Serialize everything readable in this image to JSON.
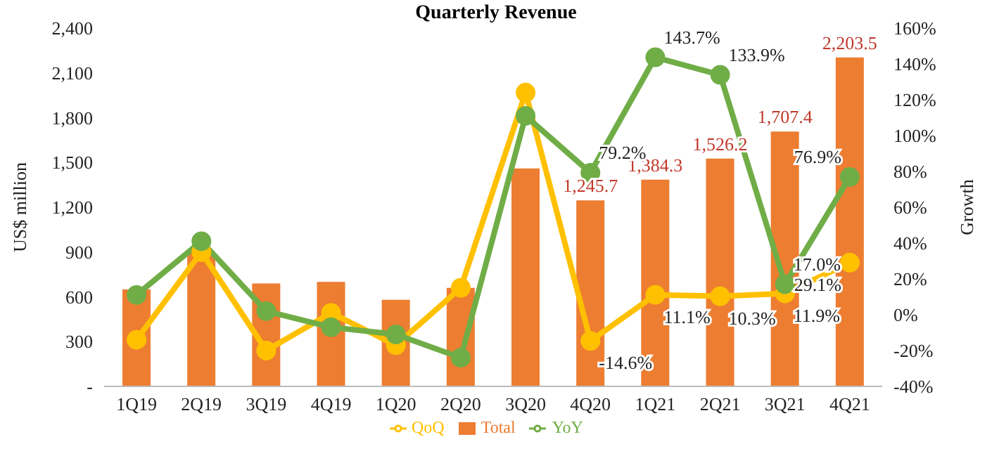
{
  "chart_data": {
    "type": "bar",
    "title": "Quarterly Revenue",
    "ylabel": "US$ million",
    "y2label": "Growth",
    "categories": [
      "1Q19",
      "2Q19",
      "3Q19",
      "4Q19",
      "1Q20",
      "2Q20",
      "3Q20",
      "4Q20",
      "1Q21",
      "2Q21",
      "3Q21",
      "4Q21"
    ],
    "series": [
      {
        "name": "Total",
        "color": "#ed7d31",
        "values": [
          650,
          900,
          690,
          700,
          580,
          660,
          1460,
          1245.7,
          1384.3,
          1526.2,
          1707.4,
          2203.5
        ],
        "value_labels": [
          null,
          null,
          null,
          null,
          null,
          null,
          null,
          "1,245.7",
          "1,384.3",
          "1,526.2",
          "1,707.4",
          "2,203.5"
        ]
      },
      {
        "name": "QoQ",
        "type": "line",
        "axis": "y2",
        "color": "#ffc000",
        "values": [
          -14,
          35,
          -20,
          1,
          -17,
          15,
          124,
          -14.6,
          11.1,
          10.3,
          11.9,
          29.1
        ],
        "value_labels": [
          null,
          null,
          null,
          null,
          null,
          null,
          null,
          "-14.6%",
          "11.1%",
          "10.3%",
          "11.9%",
          "29.1%"
        ]
      },
      {
        "name": "YoY",
        "type": "line",
        "axis": "y2",
        "color": "#70ad47",
        "values": [
          11,
          41,
          2,
          -7,
          -11,
          -24,
          111,
          79.2,
          143.7,
          133.9,
          17.0,
          76.9
        ],
        "value_labels": [
          null,
          null,
          null,
          null,
          null,
          null,
          null,
          "79.2%",
          "143.7%",
          "133.9%",
          "17.0%",
          "76.9%"
        ]
      }
    ],
    "ylim": [
      0,
      2400
    ],
    "yticks": [
      {
        "value": 0,
        "label": "-"
      },
      {
        "value": 300,
        "label": "300"
      },
      {
        "value": 600,
        "label": "600"
      },
      {
        "value": 900,
        "label": "900"
      },
      {
        "value": 1200,
        "label": "1,200"
      },
      {
        "value": 1500,
        "label": "1,500"
      },
      {
        "value": 1800,
        "label": "1,800"
      },
      {
        "value": 2100,
        "label": "2,100"
      },
      {
        "value": 2400,
        "label": "2,400"
      }
    ],
    "y2lim": [
      -40,
      160
    ],
    "y2ticks": [
      {
        "value": -40,
        "label": "-40%"
      },
      {
        "value": -20,
        "label": "-20%"
      },
      {
        "value": 0,
        "label": "0%"
      },
      {
        "value": 20,
        "label": "20%"
      },
      {
        "value": 40,
        "label": "40%"
      },
      {
        "value": 60,
        "label": "60%"
      },
      {
        "value": 80,
        "label": "80%"
      },
      {
        "value": 100,
        "label": "100%"
      },
      {
        "value": 120,
        "label": "120%"
      },
      {
        "value": 140,
        "label": "140%"
      },
      {
        "value": 160,
        "label": "160%"
      }
    ],
    "grid": false,
    "legend": "bottom",
    "marker": "circle",
    "line_style": "solid"
  }
}
